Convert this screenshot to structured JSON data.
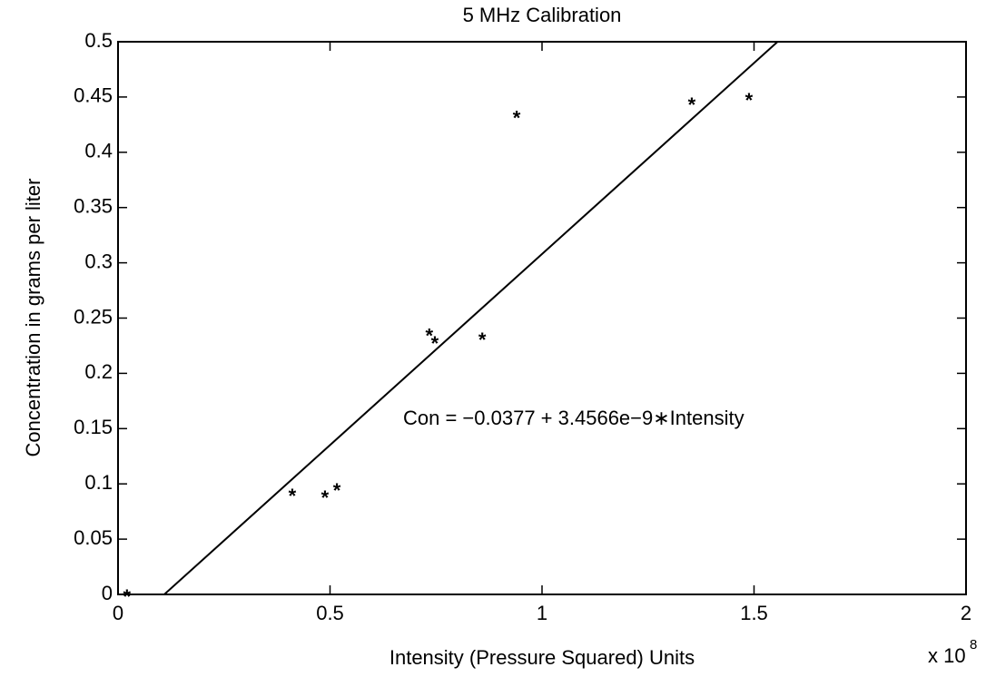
{
  "chart_data": {
    "type": "scatter",
    "title": "5 MHz Calibration",
    "x_label": "Intensity (Pressure Squared) Units",
    "y_label": "Concentration in grams per liter",
    "x_multiplier_base": "x 10",
    "x_multiplier_exponent": "8",
    "annotation": "Con = −0.0377 + 3.4566e−9∗Intensity",
    "fit": {
      "intercept": -0.0377,
      "slope": 3.4566e-09
    },
    "x": [
      2100000,
      41100000,
      48800000,
      51600000,
      73400000,
      74700000,
      85900000,
      94000000,
      135300000,
      148800000
    ],
    "values": [
      0,
      0.091,
      0.0895,
      0.096,
      0.236,
      0.229,
      0.232,
      0.433,
      0.445,
      0.449
    ],
    "color": "#000000",
    "xlim": [
      0,
      200000000
    ],
    "xticks": [
      0,
      {
        "value": 50000000,
        "label": "0.5"
      },
      {
        "value": 100000000,
        "label": "1"
      },
      {
        "value": 150000000,
        "label": "1.5"
      },
      {
        "value": 200000000,
        "label": "2"
      }
    ],
    "ylim": [
      0,
      0.5
    ],
    "yticks": [
      0,
      0.05,
      0.1,
      0.15,
      0.2,
      0.25,
      0.3,
      0.35,
      0.4,
      0.45,
      0.5
    ],
    "grid": false
  }
}
